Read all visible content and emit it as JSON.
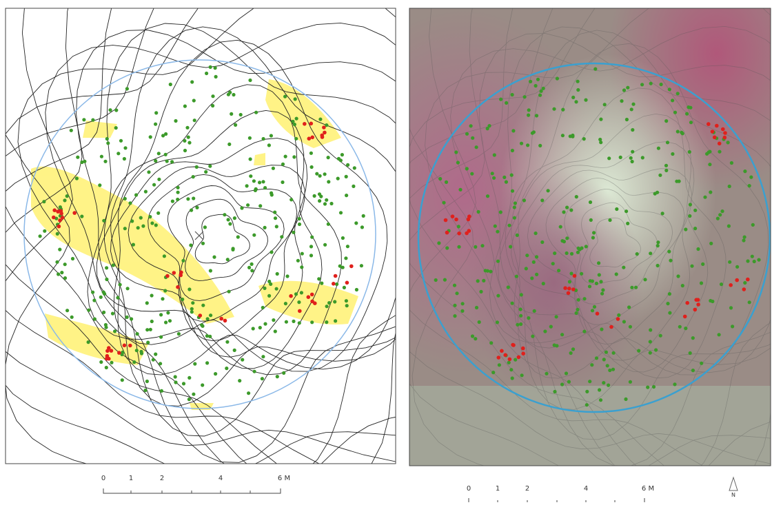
{
  "maps": [
    {
      "scale_labels": [
        "0",
        "1",
        "2",
        "4",
        "6 M"
      ]
    },
    {
      "scale_labels": [
        "0",
        "1",
        "2",
        "4",
        "6 M"
      ],
      "north": "N"
    }
  ]
}
